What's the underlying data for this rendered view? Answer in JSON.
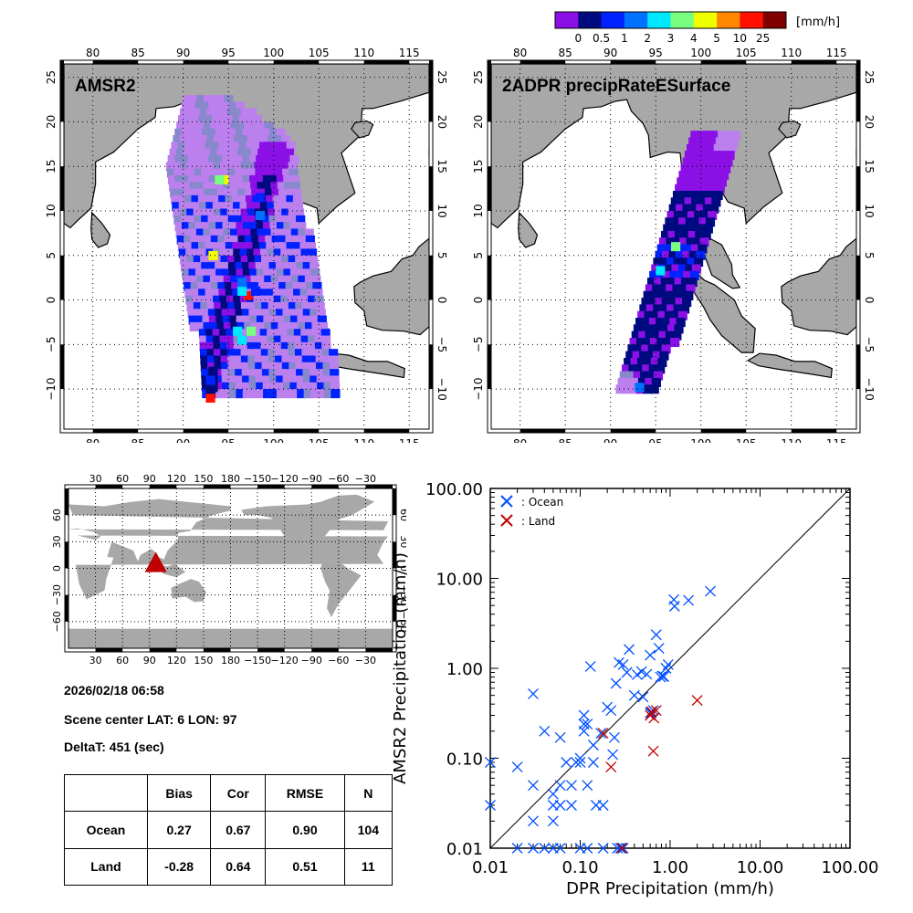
{
  "colorbar": {
    "unit_label": "[mm/h]",
    "colors": [
      "#8a10e6",
      "#000a80",
      "#0022ff",
      "#0070ff",
      "#00e8ff",
      "#78ff80",
      "#f0ff00",
      "#ff8800",
      "#ff1000",
      "#800000"
    ],
    "tick_labels": [
      "0",
      "0.5",
      "1",
      "2",
      "3",
      "4",
      "5",
      "10",
      "25"
    ]
  },
  "maps": [
    {
      "title": "AMSR2",
      "lon_ticks": [
        "80",
        "85",
        "90",
        "95",
        "100",
        "105",
        "110",
        "115"
      ],
      "lat_ticks": [
        "25",
        "20",
        "15",
        "10",
        "5",
        "0",
        "-5",
        "-10"
      ]
    },
    {
      "title": "2ADPR precipRateESurface",
      "lon_ticks": [
        "80",
        "85",
        "90",
        "95",
        "100",
        "105",
        "110",
        "115"
      ],
      "lat_ticks": [
        "25",
        "20",
        "15",
        "10",
        "5",
        "0",
        "-5",
        "-10"
      ]
    }
  ],
  "world_map": {
    "lon_ticks": [
      "30",
      "60",
      "90",
      "120",
      "150",
      "180",
      "-150",
      "-120",
      "-90",
      "-60",
      "-30"
    ],
    "lat_ticks": [
      "60",
      "30",
      "0",
      "-30",
      "-60"
    ],
    "marker": {
      "lat": 6,
      "lon": 97,
      "color": "#c00000"
    }
  },
  "info": {
    "datetime": "2026/02/18 06:58",
    "scene_center": "Scene center LAT:  6   LON:  97",
    "delta_t": "DeltaT:  451 (sec)"
  },
  "stats_table": {
    "headers": [
      "",
      "Bias",
      "Cor",
      "RMSE",
      "N"
    ],
    "rows": [
      [
        "Ocean",
        "0.27",
        "0.67",
        "0.90",
        "104"
      ],
      [
        "Land",
        "-0.28",
        "0.64",
        "0.51",
        "11"
      ]
    ]
  },
  "chart_data": {
    "type": "scatter",
    "title": "",
    "xlabel": "DPR Precipitation (mm/h)",
    "ylabel": "AMSR2 Precipitation (mm/h)",
    "xscale": "log",
    "yscale": "log",
    "xlim": [
      0.01,
      100
    ],
    "ylim": [
      0.01,
      100
    ],
    "x_tick_labels": [
      "0.01",
      "0.10",
      "1.00",
      "10.00",
      "100.00"
    ],
    "y_tick_labels": [
      "0.01",
      "0.10",
      "1.00",
      "10.00",
      "100.00"
    ],
    "one_to_one_line": true,
    "legend": {
      "position": "top-left",
      "entries": [
        {
          "label": ": Ocean",
          "color": "#0050ff"
        },
        {
          "label": ": Land",
          "color": "#c00000"
        }
      ]
    },
    "series": [
      {
        "name": "Ocean",
        "color": "#0050ff",
        "points": [
          [
            0.01,
            0.09
          ],
          [
            0.01,
            0.03
          ],
          [
            0.02,
            0.08
          ],
          [
            0.03,
            0.52
          ],
          [
            0.03,
            0.05
          ],
          [
            0.03,
            0.02
          ],
          [
            0.04,
            0.2
          ],
          [
            0.05,
            0.04
          ],
          [
            0.05,
            0.03
          ],
          [
            0.05,
            0.02
          ],
          [
            0.06,
            0.05
          ],
          [
            0.06,
            0.03
          ],
          [
            0.06,
            0.17
          ],
          [
            0.07,
            0.09
          ],
          [
            0.08,
            0.05
          ],
          [
            0.08,
            0.03
          ],
          [
            0.09,
            0.09
          ],
          [
            0.1,
            0.1
          ],
          [
            0.1,
            0.09
          ],
          [
            0.11,
            0.24
          ],
          [
            0.11,
            0.2
          ],
          [
            0.12,
            0.24
          ],
          [
            0.12,
            0.05
          ],
          [
            0.13,
            1.05
          ],
          [
            0.14,
            0.09
          ],
          [
            0.15,
            0.03
          ],
          [
            0.17,
            0.19
          ],
          [
            0.18,
            0.03
          ],
          [
            0.2,
            0.37
          ],
          [
            0.22,
            0.34
          ],
          [
            0.23,
            0.11
          ],
          [
            0.24,
            0.17
          ],
          [
            0.25,
            0.68
          ],
          [
            0.27,
            1.16
          ],
          [
            0.3,
            1.1
          ],
          [
            0.33,
            0.9
          ],
          [
            0.35,
            1.62
          ],
          [
            0.4,
            0.5
          ],
          [
            0.43,
            0.85
          ],
          [
            0.48,
            0.92
          ],
          [
            0.5,
            0.48
          ],
          [
            0.55,
            0.86
          ],
          [
            0.6,
            0.32
          ],
          [
            0.6,
            1.4
          ],
          [
            0.62,
            0.32
          ],
          [
            0.65,
            0.34
          ],
          [
            0.7,
            2.36
          ],
          [
            0.75,
            1.67
          ],
          [
            0.78,
            0.8
          ],
          [
            0.82,
            0.82
          ],
          [
            0.85,
            0.81
          ],
          [
            0.9,
            1.0
          ],
          [
            0.95,
            1.1
          ],
          [
            1.1,
            5.8
          ],
          [
            1.12,
            4.9
          ],
          [
            1.6,
            5.7
          ],
          [
            2.8,
            7.2
          ],
          [
            0.02,
            0.01
          ],
          [
            0.03,
            0.01
          ],
          [
            0.04,
            0.01
          ],
          [
            0.05,
            0.01
          ],
          [
            0.06,
            0.01
          ],
          [
            0.1,
            0.01
          ],
          [
            0.12,
            0.01
          ],
          [
            0.18,
            0.01
          ],
          [
            0.26,
            0.01
          ],
          [
            0.28,
            0.01
          ],
          [
            0.3,
            0.01
          ],
          [
            0.11,
            0.3
          ],
          [
            0.14,
            0.14
          ]
        ]
      },
      {
        "name": "Land",
        "color": "#c00000",
        "points": [
          [
            0.18,
            0.19
          ],
          [
            0.22,
            0.08
          ],
          [
            0.6,
            0.3
          ],
          [
            0.62,
            0.33
          ],
          [
            0.65,
            0.12
          ],
          [
            0.7,
            0.34
          ],
          [
            2.0,
            0.44
          ],
          [
            0.66,
            0.28
          ],
          [
            0.29,
            0.01
          ]
        ]
      }
    ]
  },
  "swath_amsr2": {
    "cells": [
      {
        "lat": -11.0,
        "lon": 93.0,
        "v": 8
      },
      {
        "lat": -10.0,
        "lon": 93.0,
        "v": 1
      },
      {
        "lat": -9.0,
        "lon": 93.0,
        "v": 2
      },
      {
        "lat": 0.5,
        "lon": 97.2,
        "v": 8
      },
      {
        "lat": 1.0,
        "lon": 96.5,
        "v": 4
      },
      {
        "lat": 5.0,
        "lon": 93.3,
        "v": 6
      },
      {
        "lat": 13.5,
        "lon": 94.5,
        "v": 6
      },
      {
        "lat": 13.5,
        "lon": 94.0,
        "v": 5
      },
      {
        "lat": -3.5,
        "lon": 96.0,
        "v": 4
      },
      {
        "lat": -3.5,
        "lon": 97.5,
        "v": 5
      },
      {
        "lat": -4.5,
        "lon": 96.5,
        "v": 4
      },
      {
        "lat": 9.5,
        "lon": 98.5,
        "v": 3
      },
      {
        "lat": 11.5,
        "lon": 98.5,
        "v": 2
      },
      {
        "lat": 1.0,
        "lon": 98.0,
        "v": 2
      },
      {
        "lat": 2.0,
        "lon": 96.5,
        "v": 3
      }
    ]
  }
}
